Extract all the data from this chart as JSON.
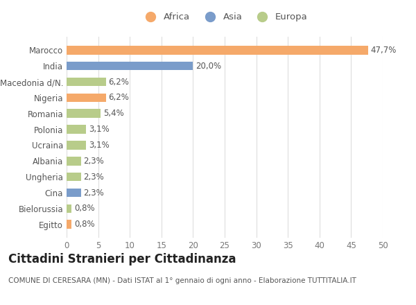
{
  "categories": [
    "Egitto",
    "Bielorussia",
    "Cina",
    "Ungheria",
    "Albania",
    "Ucraina",
    "Polonia",
    "Romania",
    "Nigeria",
    "Macedonia d/N.",
    "India",
    "Marocco"
  ],
  "values": [
    0.8,
    0.8,
    2.3,
    2.3,
    2.3,
    3.1,
    3.1,
    5.4,
    6.2,
    6.2,
    20.0,
    47.7
  ],
  "labels": [
    "0,8%",
    "0,8%",
    "2,3%",
    "2,3%",
    "2,3%",
    "3,1%",
    "3,1%",
    "5,4%",
    "6,2%",
    "6,2%",
    "20,0%",
    "47,7%"
  ],
  "colors": [
    "#f5a96a",
    "#b8cc8a",
    "#7a9cca",
    "#b8cc8a",
    "#b8cc8a",
    "#b8cc8a",
    "#b8cc8a",
    "#b8cc8a",
    "#f5a96a",
    "#b8cc8a",
    "#7a9cca",
    "#f5a96a"
  ],
  "legend_labels": [
    "Africa",
    "Asia",
    "Europa"
  ],
  "legend_colors": [
    "#f5a96a",
    "#7a9cca",
    "#b8cc8a"
  ],
  "title": "Cittadini Stranieri per Cittadinanza",
  "subtitle": "COMUNE DI CERESARA (MN) - Dati ISTAT al 1° gennaio di ogni anno - Elaborazione TUTTITALIA.IT",
  "xlim": [
    0,
    50
  ],
  "xticks": [
    0,
    5,
    10,
    15,
    20,
    25,
    30,
    35,
    40,
    45,
    50
  ],
  "bg_color": "#ffffff",
  "grid_color": "#dddddd",
  "bar_height": 0.55,
  "label_fontsize": 8.5,
  "title_fontsize": 12,
  "subtitle_fontsize": 7.5,
  "tick_fontsize": 8.5,
  "legend_fontsize": 9.5
}
